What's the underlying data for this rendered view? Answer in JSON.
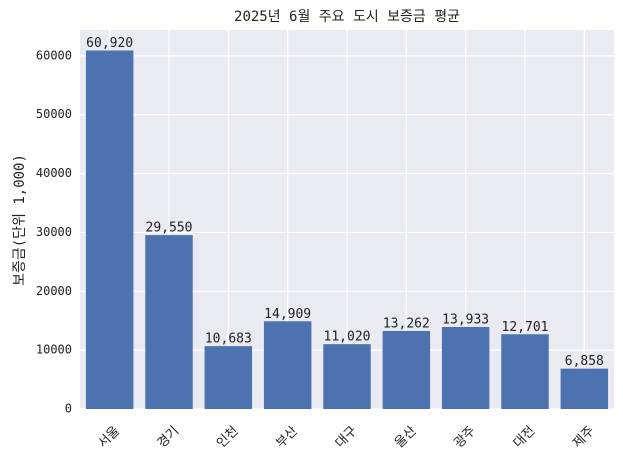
{
  "chart_data": {
    "type": "bar",
    "title": "2025년 6월 주요 도시 보증금 평균",
    "y_label": "보증금(단위 1,000)",
    "categories": [
      "서울",
      "경기",
      "인천",
      "부산",
      "대구",
      "울산",
      "광주",
      "대전",
      "제주"
    ],
    "values": [
      60920,
      29550,
      10683,
      14909,
      11020,
      13262,
      13933,
      12701,
      6858
    ],
    "value_labels": [
      "60,920",
      "29,550",
      "10,683",
      "14,909",
      "11,020",
      "13,262",
      "13,933",
      "12,701",
      "6,858"
    ],
    "color": "#4c72b0",
    "ylim": [
      0,
      64400
    ],
    "yticks": [
      0,
      10000,
      20000,
      30000,
      40000,
      50000,
      60000
    ],
    "grid": true
  }
}
